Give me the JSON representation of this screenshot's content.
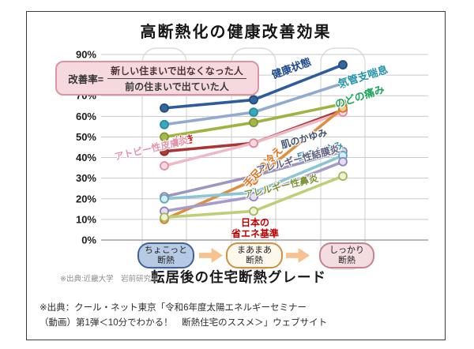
{
  "slide": {
    "title": "高断熱化の健康改善効果"
  },
  "formula": {
    "label": "改善率=",
    "numerator": "新しい住まいで出なくなった人",
    "denominator": "前の住まいで出ていた人"
  },
  "chart_data": {
    "type": "line",
    "title": "高断熱化の健康改善効果",
    "categories": [
      "ちょこっと断熱",
      "まあまあ断熱",
      "しっかり断熱"
    ],
    "x_axis_title": "転居後の住宅断熱グレード",
    "ylabel": "改善率",
    "ylim": [
      0,
      90
    ],
    "y_unit": "%",
    "y_ticks": [
      "90%",
      "80%",
      "70%",
      "60%",
      "50%",
      "40%",
      "30%",
      "20%",
      "10%",
      "0%"
    ],
    "grid": true,
    "annotation_lines": [
      "日本の",
      "省エネ基準"
    ],
    "annotation_color": "#c00000",
    "series": [
      {
        "name": "健康状態",
        "values": [
          64,
          68,
          85
        ],
        "line": "#2d5b9b",
        "marker": "#35679f",
        "ring": "#24497e",
        "label_color": "#1d4a8c"
      },
      {
        "name": "気管支喘息",
        "values": [
          56,
          62,
          76
        ],
        "line": "#90abce",
        "marker": "#36a9bd",
        "ring": "#2b8a9c",
        "label_color": "#2394a8"
      },
      {
        "name": "のどの痛み",
        "values": [
          50,
          57,
          66
        ],
        "line": "#9fb33f",
        "marker": "#a4b845",
        "ring": "#84943a",
        "label_color": "#1ca35c"
      },
      {
        "name": "せき",
        "values": [
          43,
          47,
          63
        ],
        "line": "#aa3534",
        "marker": "#b03c3a",
        "ring": "#8c2a2a",
        "label_color": "#d22020"
      },
      {
        "name": "アトピー性皮膚炎",
        "values": [
          36,
          47,
          62
        ],
        "line": "#eeb9c6",
        "marker": "#f6dbe1",
        "ring": "#e48ba0",
        "label_color": "#e795aa"
      },
      {
        "name": "手足の冷え",
        "values": [
          10,
          29,
          64
        ],
        "line": "#dd8f41",
        "marker": "#f5c994",
        "ring": "#d07c28",
        "label_color": "#e0731f"
      },
      {
        "name": "肌のかゆみ",
        "values": [
          21,
          31,
          43
        ],
        "line": "#9d97bf",
        "marker": "#dedaee",
        "ring": "#8d86b4",
        "label_color": "#3f516b"
      },
      {
        "name": "目のかゆみ",
        "values": [
          20,
          23,
          41
        ],
        "line": "#8cc6d4",
        "marker": "#d6eef3",
        "ring": "#5aa8bc",
        "label_color": "#2d93ad"
      },
      {
        "name": "アレルギー性結膜炎",
        "values": [
          14,
          21,
          38
        ],
        "line": "#a79bc8",
        "marker": "#e4def1",
        "ring": "#9183bb",
        "label_color": "#5d5e82"
      },
      {
        "name": "アレルギー性鼻炎",
        "values": [
          11,
          14,
          31
        ],
        "line": "#bed077",
        "marker": "#eef3d6",
        "ring": "#a4b757",
        "label_color": "#7e9338"
      }
    ]
  },
  "grade_boxes": [
    {
      "lines": [
        "ちょこっと",
        "断熱"
      ],
      "bg": "#b6cbe3",
      "border": "#41619b"
    },
    {
      "lines": [
        "まあまあ",
        "断熱"
      ],
      "bg": "#fdf8ee",
      "border": "#cf9140"
    },
    {
      "lines": [
        "しっかり",
        "断熱"
      ],
      "bg": "#f4dde1",
      "border": "#c3848f"
    }
  ],
  "arrow_color": "#f6c38e",
  "sources": {
    "chart_note": "※出典:近畿大学　岩前研究室",
    "footer_lines": [
      "※出典：クール・ネット東京「令和6年度太陽エネルギーセミナー",
      "（動画）第1弾＜10分でわかる！　断熱住宅のススメ＞」ウェブサイト"
    ]
  }
}
